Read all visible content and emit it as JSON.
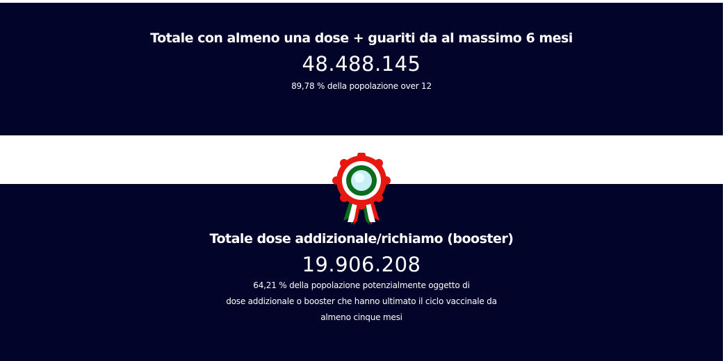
{
  "section1": {
    "title": "Totale con almeno una dose + guariti da al massimo 6 mesi",
    "value": "48.488.145",
    "note": "89,78 % della popolazione over 12"
  },
  "section2": {
    "title": "Totale dose addizionale/richiamo (booster)",
    "value": "19.906.208",
    "note_lines": [
      "64,21 % della popolazione potenzialmente oggetto di",
      "dose addizionale o booster che hanno ultimato il ciclo vaccinale da",
      "almeno cinque mesi"
    ]
  },
  "icons": {
    "rosette": "italian-cockade-icon"
  },
  "colors": {
    "background": "#03042a",
    "red": "#e8170f",
    "green": "#0c6b1c"
  }
}
